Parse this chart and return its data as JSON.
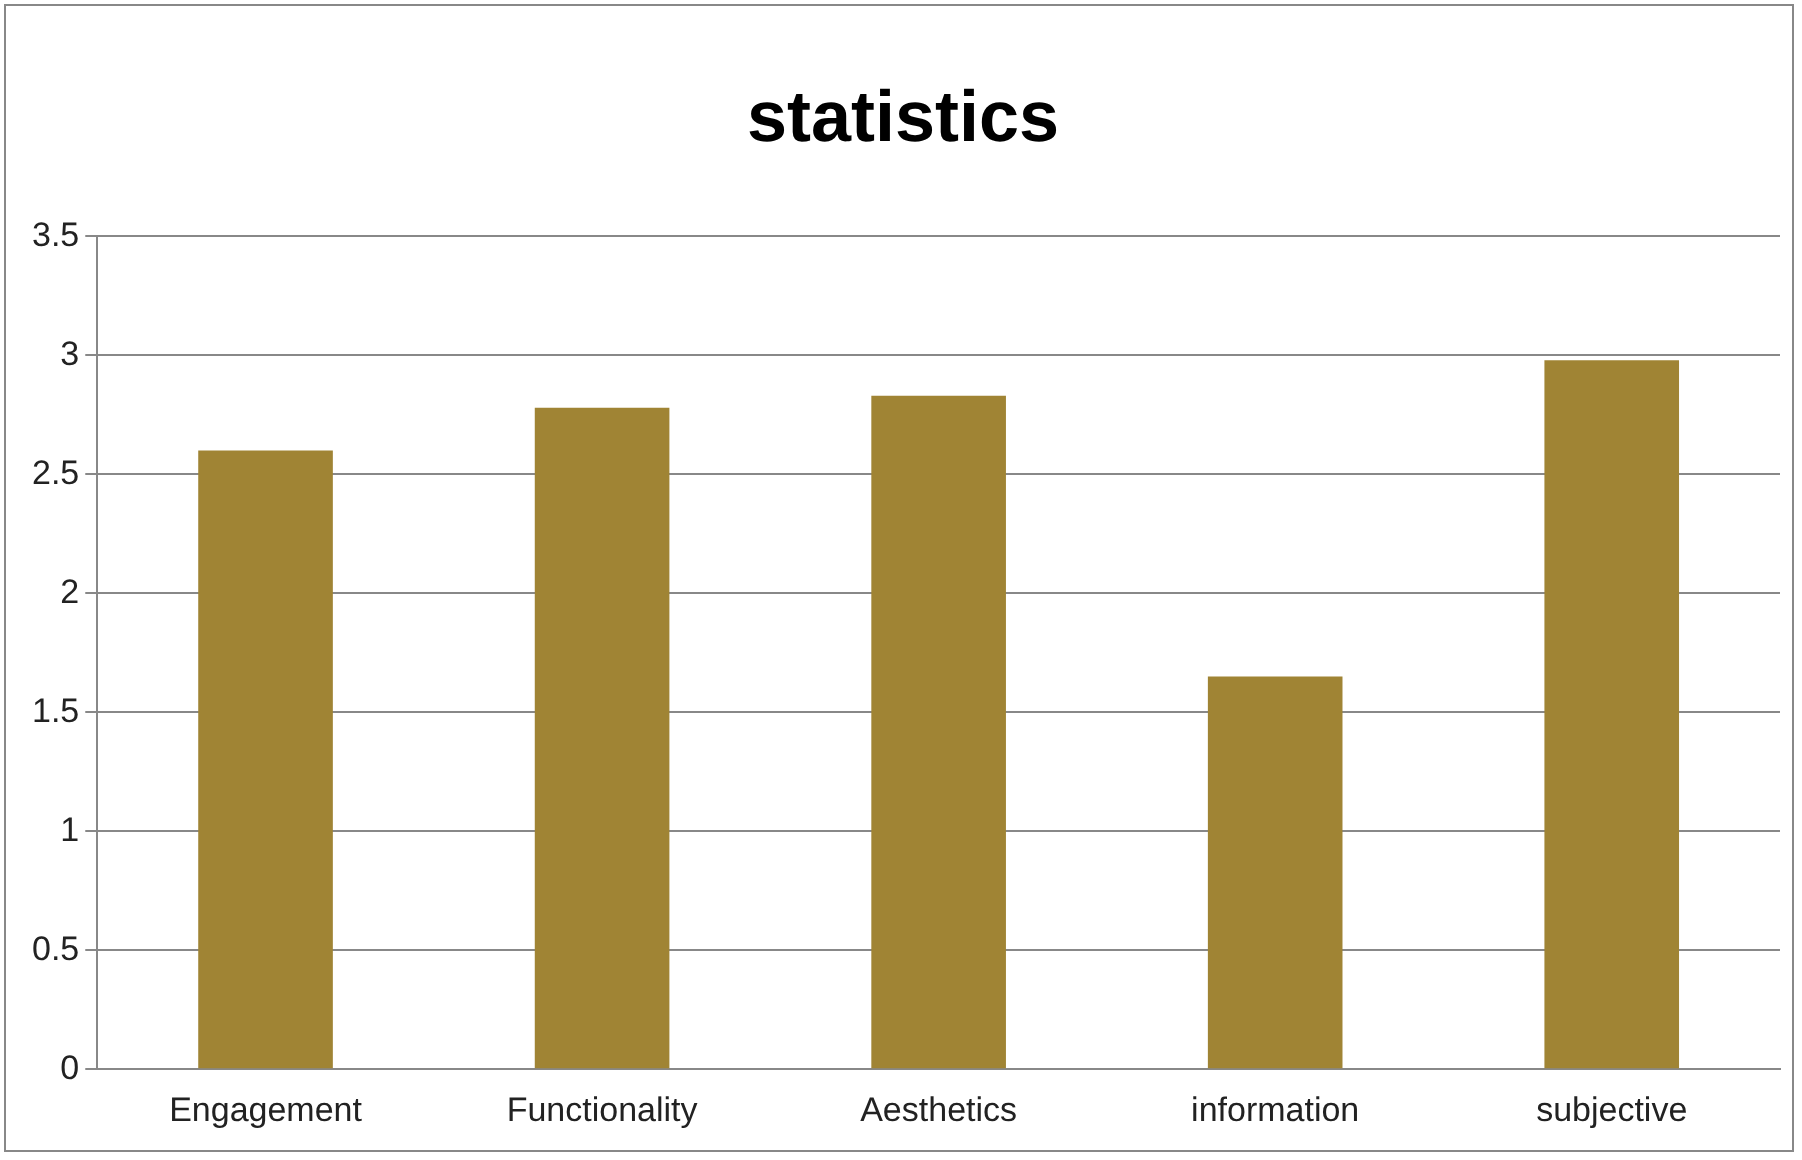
{
  "chart_data": {
    "type": "bar",
    "title": "statistics",
    "categories": [
      "Engagement",
      "Functionality",
      "Aesthetics",
      "information",
      "subjective"
    ],
    "values": [
      2.6,
      2.78,
      2.83,
      1.65,
      2.98
    ],
    "color": "#a08434",
    "ylim": [
      0,
      3.5
    ],
    "yticks": [
      0,
      0.5,
      1,
      1.5,
      2,
      2.5,
      3,
      3.5
    ],
    "grid": "y",
    "legend": false
  }
}
